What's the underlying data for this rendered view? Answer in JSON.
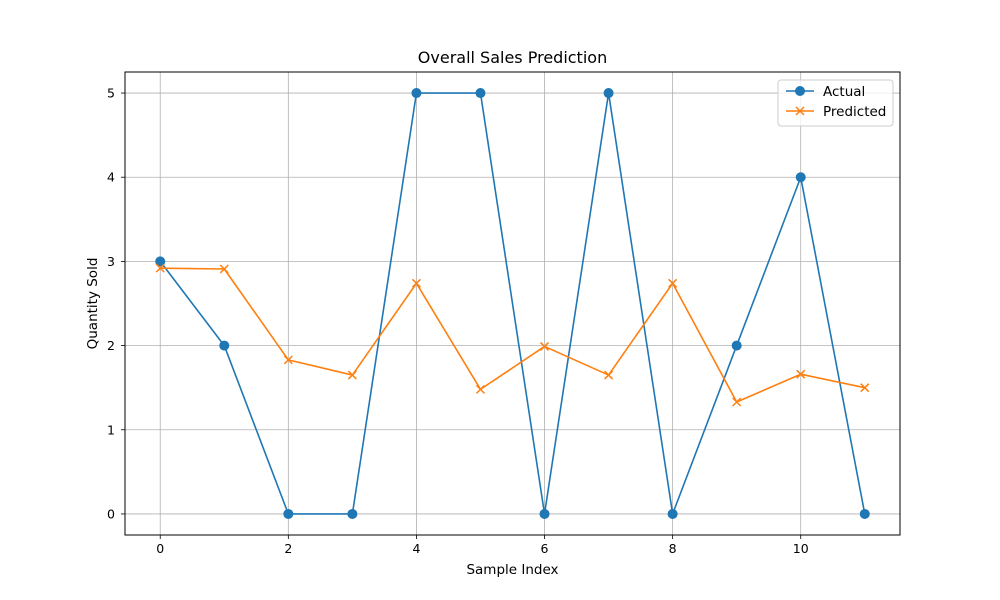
{
  "chart_data": {
    "type": "line",
    "title": "Overall Sales Prediction",
    "xlabel": "Sample Index",
    "ylabel": "Quantity Sold",
    "x": [
      0,
      1,
      2,
      3,
      4,
      5,
      6,
      7,
      8,
      9,
      10,
      11
    ],
    "xlim": [
      -0.55,
      11.55
    ],
    "ylim": [
      -0.25,
      5.25
    ],
    "xticks": [
      0,
      2,
      4,
      6,
      8,
      10
    ],
    "yticks": [
      0,
      1,
      2,
      3,
      4,
      5
    ],
    "grid": true,
    "legend_position": "top-right",
    "series": [
      {
        "name": "Actual",
        "color": "#1f77b4",
        "marker": "circle",
        "values": [
          3,
          2,
          0,
          0,
          5,
          5,
          0,
          5,
          0,
          2,
          4,
          0
        ]
      },
      {
        "name": "Predicted",
        "color": "#ff7f0e",
        "marker": "x",
        "values": [
          2.92,
          2.91,
          1.83,
          1.65,
          2.74,
          1.48,
          1.99,
          1.65,
          2.74,
          1.33,
          1.66,
          1.5
        ]
      }
    ]
  }
}
